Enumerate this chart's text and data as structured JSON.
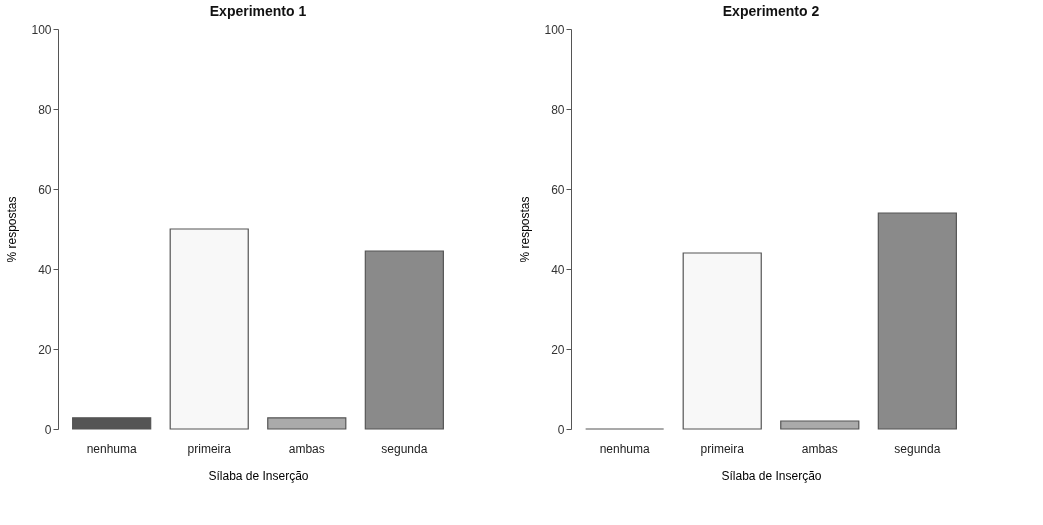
{
  "chart_data": [
    {
      "type": "bar",
      "title": "Experimento 1",
      "xlabel": "Sílaba de Inserção",
      "ylabel": "% respostas",
      "categories": [
        "nenhuma",
        "primeira",
        "ambas",
        "segunda"
      ],
      "values": [
        2.8,
        50,
        2.8,
        44.5
      ],
      "colors": [
        "#555555",
        "#f8f8f8",
        "#aaaaaa",
        "#8a8a8a"
      ],
      "ylim": [
        0,
        100
      ],
      "yticks": [
        0,
        20,
        40,
        60,
        80,
        100
      ],
      "grid": false
    },
    {
      "type": "bar",
      "title": "Experimento 2",
      "xlabel": "Sílaba de Inserção",
      "ylabel": "% respostas",
      "categories": [
        "nenhuma",
        "primeira",
        "ambas",
        "segunda"
      ],
      "values": [
        0,
        44,
        2,
        54
      ],
      "colors": [
        "#555555",
        "#f8f8f8",
        "#aaaaaa",
        "#8a8a8a"
      ],
      "ylim": [
        0,
        100
      ],
      "yticks": [
        0,
        20,
        40,
        60,
        80,
        100
      ],
      "grid": false
    }
  ]
}
